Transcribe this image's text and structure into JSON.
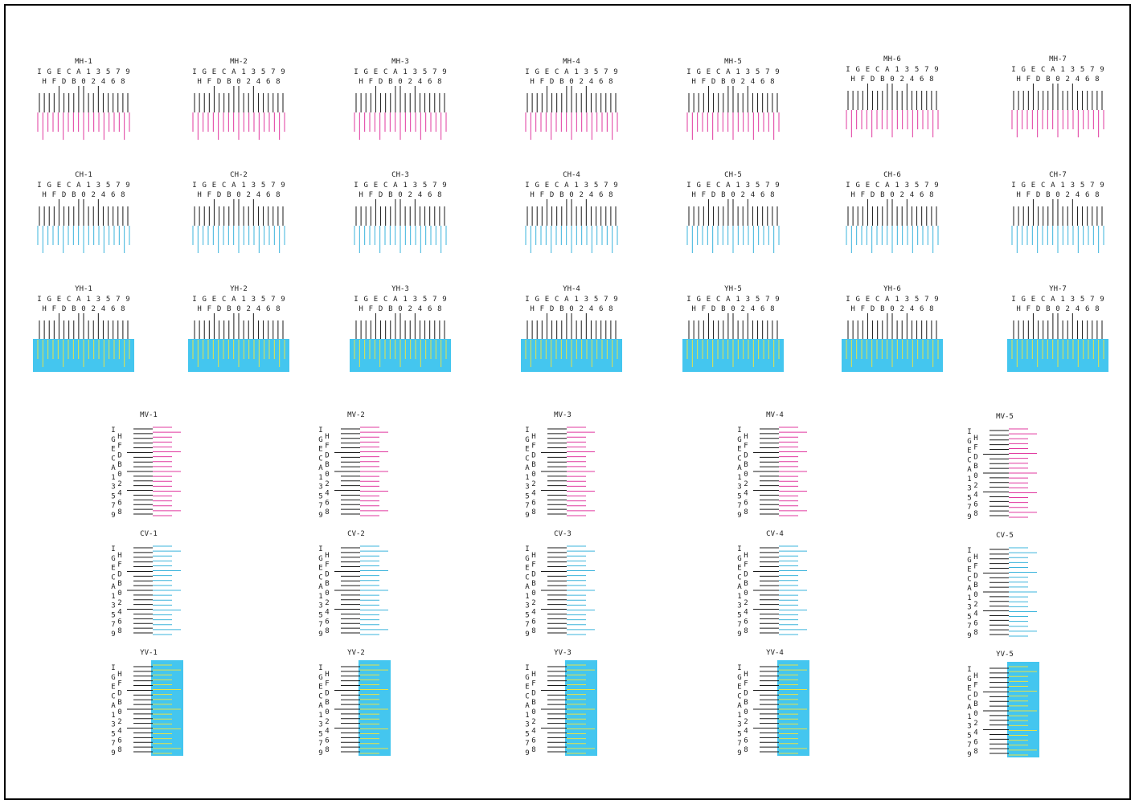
{
  "sheet": {
    "horizontal_scale": {
      "top_row": [
        "I",
        "G",
        "E",
        "C",
        "A",
        "1",
        "3",
        "5",
        "7",
        "9"
      ],
      "bottom_row": [
        "H",
        "F",
        "D",
        "B",
        "0",
        "2",
        "4",
        "6",
        "8"
      ]
    },
    "vertical_scale": {
      "left_column": [
        "I",
        "G",
        "E",
        "C",
        "A",
        "1",
        "3",
        "5",
        "7",
        "9"
      ],
      "right_column": [
        "H",
        "F",
        "D",
        "B",
        "0",
        "2",
        "4",
        "6",
        "8"
      ]
    },
    "colors": {
      "black": "#1a1a1a",
      "magenta": "#e0389f",
      "cyan": "#3bb4dc",
      "yellow": "#e6e24a",
      "cyan_block": "#44c6ef"
    },
    "horizontal_groups": [
      {
        "color": "magenta",
        "labels": [
          "MH-1",
          "MH-2",
          "MH-3",
          "MH-4",
          "MH-5",
          "MH-6",
          "MH-7"
        ]
      },
      {
        "color": "cyan",
        "labels": [
          "CH-1",
          "CH-2",
          "CH-3",
          "CH-4",
          "CH-5",
          "CH-6",
          "CH-7"
        ]
      },
      {
        "color": "yellow",
        "labels": [
          "YH-1",
          "YH-2",
          "YH-3",
          "YH-4",
          "YH-5",
          "YH-6",
          "YH-7"
        ]
      }
    ],
    "vertical_groups": [
      {
        "color": "magenta",
        "labels": [
          "MV-1",
          "MV-2",
          "MV-3",
          "MV-4",
          "MV-5"
        ]
      },
      {
        "color": "cyan",
        "labels": [
          "CV-1",
          "CV-2",
          "CV-3",
          "CV-4",
          "CV-5"
        ]
      },
      {
        "color": "yellow",
        "labels": [
          "YV-1",
          "YV-2",
          "YV-3",
          "YV-4",
          "YV-5"
        ]
      }
    ]
  }
}
